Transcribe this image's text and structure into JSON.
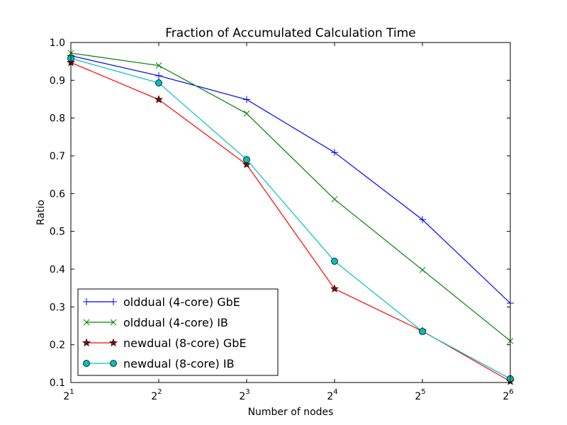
{
  "chart_data": {
    "type": "line",
    "title": "Fraction of Accumulated Calculation Time",
    "xlabel": "Number of nodes",
    "ylabel": "Ratio",
    "x_scale": "log2",
    "x": [
      2,
      4,
      8,
      16,
      32,
      64
    ],
    "x_tick_labels": [
      {
        "base": "2",
        "exp": "1"
      },
      {
        "base": "2",
        "exp": "2"
      },
      {
        "base": "2",
        "exp": "3"
      },
      {
        "base": "2",
        "exp": "4"
      },
      {
        "base": "2",
        "exp": "5"
      },
      {
        "base": "2",
        "exp": "6"
      }
    ],
    "xlim": [
      2,
      64
    ],
    "ylim": [
      0.1,
      1.0
    ],
    "y_ticks": [
      "0.1",
      "0.2",
      "0.3",
      "0.4",
      "0.5",
      "0.6",
      "0.7",
      "0.8",
      "0.9",
      "1.0"
    ],
    "grid": false,
    "legend_position": "lower-left",
    "series": [
      {
        "name": "olddual (4-core) GbE",
        "color": "#0000ff",
        "marker": "plus",
        "values": [
          0.965,
          0.912,
          0.849,
          0.709,
          0.531,
          0.31
        ]
      },
      {
        "name": "olddual (4-core) IB",
        "color": "#008000",
        "marker": "x",
        "values": [
          0.972,
          0.939,
          0.812,
          0.585,
          0.398,
          0.21
        ]
      },
      {
        "name": "newdual (8-core) GbE",
        "color": "#ff0000",
        "marker_fill": "#8b0000",
        "marker": "star",
        "values": [
          0.947,
          0.849,
          0.677,
          0.348,
          0.236,
          0.103
        ]
      },
      {
        "name": "newdual (8-core) IB",
        "color": "#00bfbf",
        "marker_fill": "#00bfbf",
        "marker": "circle",
        "values": [
          0.958,
          0.893,
          0.69,
          0.421,
          0.235,
          0.11
        ]
      }
    ]
  }
}
